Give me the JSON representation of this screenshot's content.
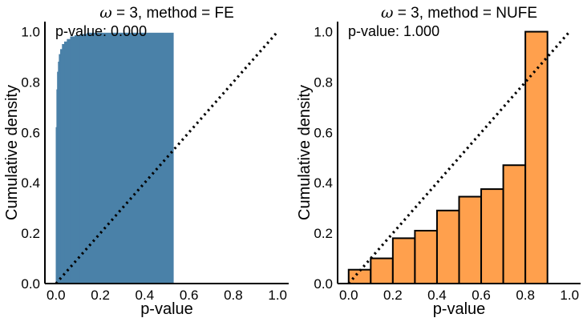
{
  "chart_data": [
    {
      "type": "bar",
      "subtype": "cumulative-histogram",
      "title_symbol": "ω",
      "title_rest": " = 3, method = FE",
      "annotation": "p-value: 0.000",
      "xlabel": "p-value",
      "ylabel": "Cumulative density",
      "xlim": [
        -0.05,
        1.05
      ],
      "ylim": [
        0,
        1.04
      ],
      "xticks": [
        "0.0",
        "0.2",
        "0.4",
        "0.6",
        "0.8",
        "1.0"
      ],
      "yticks": [
        "0.0",
        "0.2",
        "0.4",
        "0.6",
        "0.8",
        "1.0"
      ],
      "grid": false,
      "reference_line": {
        "x": [
          0,
          1
        ],
        "y": [
          0,
          1
        ],
        "style": "dotted"
      },
      "bar_color": "#4a81a8",
      "bar_outline": "none",
      "bars": [
        {
          "x0": 0.0,
          "x1": 0.003,
          "y": 0.62
        },
        {
          "x0": 0.003,
          "x1": 0.006,
          "y": 0.77
        },
        {
          "x0": 0.006,
          "x1": 0.01,
          "y": 0.84
        },
        {
          "x0": 0.01,
          "x1": 0.014,
          "y": 0.88
        },
        {
          "x0": 0.014,
          "x1": 0.02,
          "y": 0.91
        },
        {
          "x0": 0.02,
          "x1": 0.028,
          "y": 0.93
        },
        {
          "x0": 0.028,
          "x1": 0.038,
          "y": 0.95
        },
        {
          "x0": 0.038,
          "x1": 0.05,
          "y": 0.96
        },
        {
          "x0": 0.05,
          "x1": 0.065,
          "y": 0.97
        },
        {
          "x0": 0.065,
          "x1": 0.085,
          "y": 0.98
        },
        {
          "x0": 0.085,
          "x1": 0.11,
          "y": 0.985
        },
        {
          "x0": 0.11,
          "x1": 0.14,
          "y": 0.99
        },
        {
          "x0": 0.14,
          "x1": 0.53,
          "y": 0.995
        }
      ]
    },
    {
      "type": "bar",
      "subtype": "cumulative-histogram",
      "title_symbol": "ω",
      "title_rest": " = 3, method = NUFE",
      "annotation": "p-value: 1.000",
      "xlabel": "p-value",
      "ylabel": "Cumulative density",
      "xlim": [
        -0.05,
        1.05
      ],
      "ylim": [
        0,
        1.04
      ],
      "xticks": [
        "0.0",
        "0.2",
        "0.4",
        "0.6",
        "0.8",
        "1.0"
      ],
      "yticks": [
        "0.0",
        "0.2",
        "0.4",
        "0.6",
        "0.8",
        "1.0"
      ],
      "grid": false,
      "reference_line": {
        "x": [
          0,
          1
        ],
        "y": [
          0,
          1
        ],
        "style": "dotted"
      },
      "bar_color": "#ffa04d",
      "bar_outline": "#000000",
      "bars": [
        {
          "x0": 0.0,
          "x1": 0.1,
          "y": 0.055
        },
        {
          "x0": 0.1,
          "x1": 0.2,
          "y": 0.1
        },
        {
          "x0": 0.2,
          "x1": 0.3,
          "y": 0.18
        },
        {
          "x0": 0.3,
          "x1": 0.4,
          "y": 0.21
        },
        {
          "x0": 0.4,
          "x1": 0.5,
          "y": 0.29
        },
        {
          "x0": 0.5,
          "x1": 0.6,
          "y": 0.345
        },
        {
          "x0": 0.6,
          "x1": 0.7,
          "y": 0.375
        },
        {
          "x0": 0.7,
          "x1": 0.8,
          "y": 0.47
        },
        {
          "x0": 0.8,
          "x1": 0.9,
          "y": 1.0
        }
      ]
    }
  ]
}
